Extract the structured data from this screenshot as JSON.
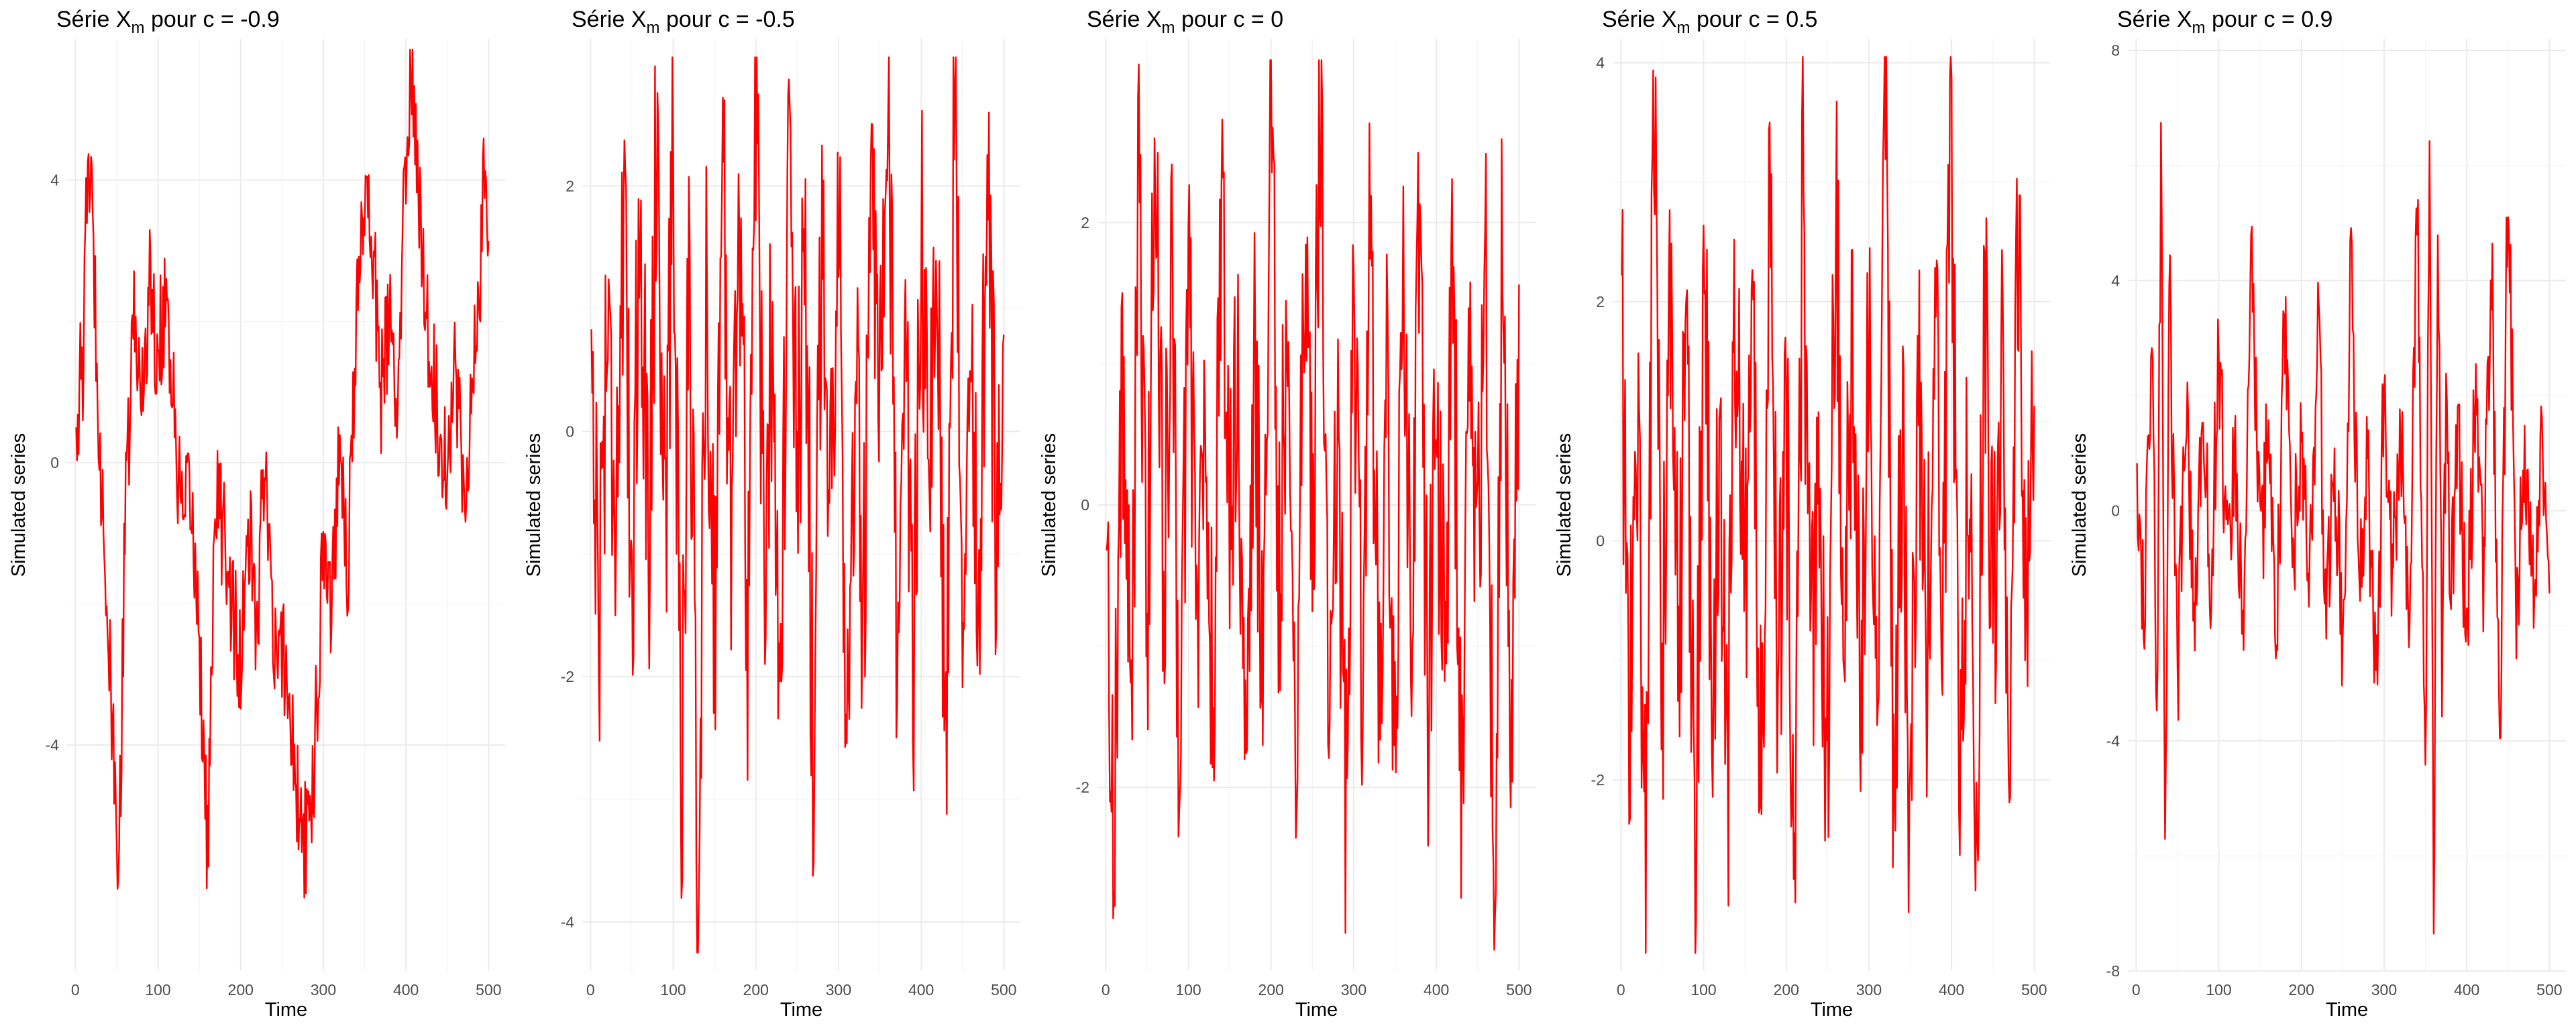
{
  "chart_data": [
    {
      "type": "line",
      "title_prefix": "Série X",
      "title_subscript": "m",
      "title_suffix": " pour c = -0.9",
      "c": -0.9,
      "xlabel": "Time",
      "ylabel": "Simulated series",
      "xlim": [
        -10,
        520
      ],
      "ylim": [
        -7.2,
        6.0
      ],
      "xticks": [
        0,
        100,
        200,
        300,
        400,
        500
      ],
      "yticks": [
        -4,
        0,
        4
      ],
      "grid": true,
      "line_color": "#ff0000",
      "series": [
        {
          "x": [
            1,
            10,
            15,
            20,
            25,
            30,
            40,
            50,
            55,
            60,
            70,
            80,
            90,
            100,
            110,
            120,
            130,
            140,
            150,
            160,
            170,
            180,
            190,
            200,
            210,
            220,
            230,
            240,
            250,
            260,
            270,
            280,
            290,
            300,
            310,
            320,
            330,
            340,
            350,
            360,
            370,
            380,
            390,
            400,
            405,
            410,
            420,
            430,
            440,
            450,
            460,
            470,
            480,
            490,
            495,
            500
          ],
          "values": [
            0.6,
            1.5,
            4.5,
            3.5,
            2.0,
            0.2,
            -2.5,
            -5.5,
            -4.5,
            -1.0,
            2.0,
            1.0,
            2.5,
            1.5,
            2.5,
            0.5,
            -1.0,
            -0.5,
            -2.5,
            -5.5,
            -0.5,
            -1.0,
            -2.0,
            -3.0,
            -1.0,
            -2.5,
            0.5,
            -3.0,
            -2.5,
            -3.5,
            -5.0,
            -5.5,
            -4.0,
            -1.0,
            -2.0,
            0.5,
            -1.5,
            2.0,
            4.0,
            3.0,
            1.0,
            2.0,
            0.5,
            4.5,
            5.5,
            5.0,
            3.0,
            1.5,
            0.5,
            0.0,
            1.5,
            -0.5,
            1.0,
            2.5,
            4.5,
            2.5
          ]
        }
      ]
    },
    {
      "type": "line",
      "title_prefix": "Série X",
      "title_subscript": "m",
      "title_suffix": " pour c = -0.5",
      "c": -0.5,
      "xlabel": "Time",
      "ylabel": "Simulated series",
      "xlim": [
        -10,
        520
      ],
      "ylim": [
        -4.4,
        3.2
      ],
      "xticks": [
        0,
        100,
        200,
        300,
        400,
        500
      ],
      "yticks": [
        -4,
        -2,
        0,
        2
      ],
      "grid": true,
      "line_color": "#ff0000",
      "series": [
        {
          "x": [
            1,
            10,
            20,
            30,
            40,
            50,
            60,
            70,
            80,
            90,
            100,
            110,
            120,
            130,
            140,
            150,
            160,
            170,
            180,
            190,
            200,
            210,
            220,
            230,
            240,
            250,
            260,
            270,
            280,
            290,
            300,
            310,
            320,
            330,
            340,
            350,
            360,
            370,
            380,
            390,
            400,
            410,
            420,
            430,
            440,
            450,
            460,
            470,
            480,
            490,
            500
          ],
          "values": [
            0.8,
            -1.5,
            1.0,
            -0.5,
            1.5,
            -1.2,
            2.0,
            -1.0,
            2.5,
            -0.8,
            2.2,
            -2.8,
            1.5,
            -4.0,
            1.2,
            -1.5,
            2.0,
            -0.5,
            1.8,
            -1.6,
            2.9,
            -1.2,
            1.0,
            -2.0,
            2.2,
            -0.5,
            1.5,
            -3.0,
            2.0,
            -0.8,
            2.5,
            -3.0,
            0.5,
            -1.5,
            1.7,
            -0.2,
            2.6,
            -1.4,
            0.8,
            -2.2,
            1.9,
            -0.6,
            1.2,
            -2.6,
            2.8,
            -1.0,
            1.3,
            -2.0,
            2.4,
            -0.9,
            1.0
          ]
        }
      ]
    },
    {
      "type": "line",
      "title_prefix": "Série X",
      "title_subscript": "m",
      "title_suffix": " pour c = 0",
      "c": 0,
      "xlabel": "Time",
      "ylabel": "Simulated series",
      "xlim": [
        -10,
        520
      ],
      "ylim": [
        -3.3,
        3.3
      ],
      "xticks": [
        0,
        100,
        200,
        300,
        400,
        500
      ],
      "yticks": [
        -2,
        0,
        2
      ],
      "grid": true,
      "line_color": "#ff0000",
      "series": [
        {
          "x": [
            1,
            10,
            20,
            30,
            40,
            50,
            60,
            70,
            80,
            90,
            100,
            110,
            120,
            130,
            140,
            150,
            160,
            170,
            180,
            190,
            200,
            210,
            220,
            230,
            240,
            250,
            260,
            270,
            280,
            290,
            300,
            310,
            320,
            330,
            340,
            350,
            360,
            370,
            380,
            390,
            400,
            410,
            420,
            430,
            440,
            450,
            460,
            470,
            480,
            490,
            500
          ],
          "values": [
            -0.5,
            -2.2,
            1.0,
            -1.5,
            2.2,
            -1.0,
            2.8,
            -0.5,
            1.5,
            -2.0,
            1.8,
            -0.8,
            0.5,
            -1.6,
            2.3,
            -0.3,
            1.2,
            -2.4,
            0.9,
            -1.1,
            2.7,
            -0.6,
            1.4,
            -1.8,
            2.0,
            -0.4,
            3.0,
            -1.5,
            0.7,
            -2.2,
            1.6,
            -0.9,
            2.0,
            -1.3,
            0.8,
            -2.0,
            1.5,
            -0.7,
            2.1,
            -1.6,
            0.6,
            -1.0,
            1.8,
            -2.1,
            0.9,
            -0.4,
            1.7,
            -3.0,
            2.0,
            -1.2,
            0.5
          ]
        }
      ]
    },
    {
      "type": "line",
      "title_prefix": "Série X",
      "title_subscript": "m",
      "title_suffix": " pour c = 0.5",
      "c": 0.5,
      "xlabel": "Time",
      "ylabel": "Simulated series",
      "xlim": [
        -10,
        520
      ],
      "ylim": [
        -3.6,
        4.2
      ],
      "xticks": [
        0,
        100,
        200,
        300,
        400,
        500
      ],
      "yticks": [
        -2,
        0,
        2,
        4
      ],
      "grid": true,
      "line_color": "#ff0000",
      "series": [
        {
          "x": [
            1,
            10,
            20,
            30,
            40,
            50,
            60,
            70,
            80,
            90,
            100,
            110,
            120,
            130,
            140,
            150,
            160,
            170,
            180,
            190,
            200,
            210,
            220,
            230,
            240,
            250,
            260,
            270,
            280,
            290,
            300,
            310,
            320,
            330,
            340,
            350,
            360,
            370,
            380,
            390,
            400,
            410,
            420,
            430,
            440,
            450,
            460,
            470,
            480,
            490,
            500
          ],
          "values": [
            1.8,
            -1.5,
            1.0,
            -2.6,
            3.8,
            -1.2,
            2.0,
            -0.8,
            1.5,
            -3.0,
            2.4,
            -1.0,
            0.6,
            -1.8,
            2.6,
            -0.5,
            1.7,
            -2.5,
            3.5,
            -1.0,
            0.8,
            -2.2,
            2.9,
            -1.4,
            0.4,
            -2.0,
            3.0,
            -0.9,
            1.3,
            -1.7,
            2.5,
            -1.1,
            3.6,
            -2.3,
            0.9,
            -2.8,
            1.8,
            -1.3,
            2.3,
            -0.6,
            3.5,
            -1.9,
            1.1,
            -2.4,
            2.2,
            -0.7,
            1.5,
            -2.0,
            2.7,
            -1.2,
            1.0
          ]
        }
      ]
    },
    {
      "type": "line",
      "title_prefix": "Série X",
      "title_subscript": "m",
      "title_suffix": " pour c = 0.9",
      "c": 0.9,
      "xlabel": "Time",
      "ylabel": "Simulated series",
      "xlim": [
        -10,
        520
      ],
      "ylim": [
        -8.0,
        8.2
      ],
      "xticks": [
        0,
        100,
        200,
        300,
        400,
        500
      ],
      "yticks": [
        -8,
        -4,
        0,
        4,
        8
      ],
      "grid": true,
      "line_color": "#ff0000",
      "series": [
        {
          "x": [
            1,
            10,
            20,
            25,
            30,
            35,
            40,
            50,
            60,
            70,
            80,
            90,
            100,
            110,
            120,
            130,
            140,
            150,
            160,
            170,
            180,
            190,
            200,
            210,
            220,
            230,
            240,
            250,
            260,
            270,
            280,
            290,
            300,
            310,
            320,
            330,
            340,
            350,
            355,
            360,
            365,
            370,
            375,
            380,
            390,
            400,
            410,
            420,
            430,
            440,
            450,
            460,
            470,
            480,
            490,
            500
          ],
          "values": [
            0.3,
            -1.5,
            2.5,
            -4.0,
            6.5,
            -6.0,
            4.0,
            -3.0,
            2.0,
            -2.0,
            1.5,
            -1.0,
            2.5,
            -0.5,
            1.0,
            -2.5,
            4.5,
            -1.0,
            1.5,
            -2.0,
            3.5,
            -0.8,
            1.2,
            -1.5,
            3.5,
            -2.0,
            1.0,
            -2.5,
            4.5,
            -1.2,
            0.8,
            -3.0,
            2.0,
            -1.0,
            1.5,
            -2.0,
            5.5,
            -5.0,
            7.3,
            -7.5,
            5.0,
            -3.0,
            2.0,
            -1.5,
            1.5,
            -2.5,
            2.0,
            -1.0,
            4.5,
            -4.5,
            6.0,
            -2.0,
            1.0,
            -1.5,
            0.8,
            -0.5
          ]
        }
      ]
    }
  ]
}
